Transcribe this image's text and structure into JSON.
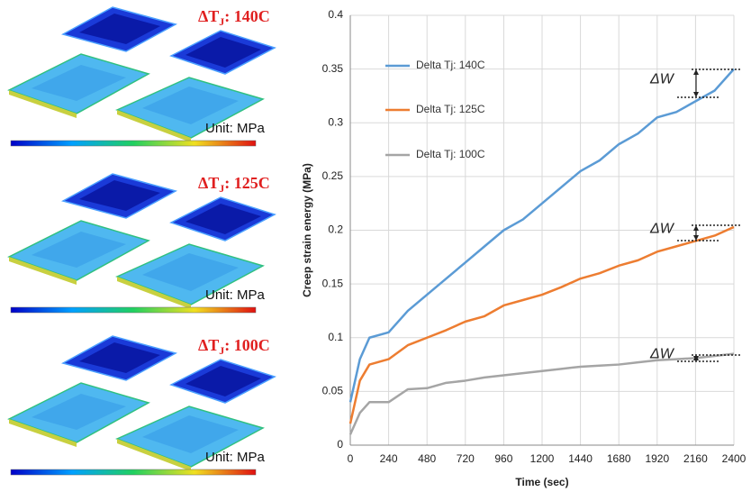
{
  "contour_panels": [
    {
      "label_main": "ΔT",
      "label_sub": "J",
      "label_value": ": 140C",
      "unit": "Unit: MPa"
    },
    {
      "label_main": "ΔT",
      "label_sub": "J",
      "label_value": ": 125C",
      "unit": "Unit: MPa"
    },
    {
      "label_main": "ΔT",
      "label_sub": "J",
      "label_value": ": 100C",
      "unit": "Unit: MPa"
    }
  ],
  "chart_data": {
    "type": "line",
    "x_label": "Time (sec)",
    "y_label": "Creep strain energy (MPa)",
    "x": [
      0,
      60,
      120,
      240,
      360,
      480,
      600,
      720,
      840,
      960,
      1080,
      1200,
      1320,
      1440,
      1560,
      1680,
      1800,
      1920,
      2040,
      2160,
      2280,
      2400
    ],
    "series": [
      {
        "name": "Delta Tj: 140C",
        "color": "#5b9bd5",
        "values": [
          0.04,
          0.08,
          0.1,
          0.105,
          0.125,
          0.14,
          0.155,
          0.17,
          0.185,
          0.2,
          0.21,
          0.225,
          0.24,
          0.255,
          0.265,
          0.28,
          0.29,
          0.305,
          0.31,
          0.32,
          0.33,
          0.35
        ]
      },
      {
        "name": "Delta Tj: 125C",
        "color": "#ed7d31",
        "values": [
          0.02,
          0.06,
          0.075,
          0.08,
          0.093,
          0.1,
          0.107,
          0.115,
          0.12,
          0.13,
          0.135,
          0.14,
          0.147,
          0.155,
          0.16,
          0.167,
          0.172,
          0.18,
          0.185,
          0.19,
          0.195,
          0.203
        ]
      },
      {
        "name": "Delta Tj: 100C",
        "color": "#a5a5a5",
        "values": [
          0.01,
          0.03,
          0.04,
          0.04,
          0.052,
          0.053,
          0.058,
          0.06,
          0.063,
          0.065,
          0.067,
          0.069,
          0.071,
          0.073,
          0.074,
          0.075,
          0.077,
          0.079,
          0.08,
          0.081,
          0.083,
          0.085
        ]
      }
    ],
    "xlim": [
      0,
      2400
    ],
    "xticks": [
      0,
      240,
      480,
      720,
      960,
      1200,
      1440,
      1680,
      1920,
      2160,
      2400
    ],
    "ylim": [
      0,
      0.4
    ],
    "yticks": [
      0,
      0.05,
      0.1,
      0.15,
      0.2,
      0.25,
      0.3,
      0.35,
      0.4
    ],
    "grid": true,
    "annotations": [
      "ΔW",
      "ΔW",
      "ΔW"
    ]
  }
}
